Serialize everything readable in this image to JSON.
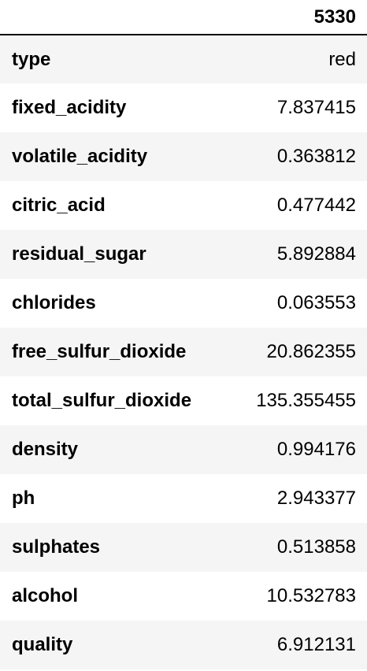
{
  "table": {
    "column_header": "5330",
    "rows": [
      {
        "label": "type",
        "value": "red"
      },
      {
        "label": "fixed_acidity",
        "value": "7.837415"
      },
      {
        "label": "volatile_acidity",
        "value": "0.363812"
      },
      {
        "label": "citric_acid",
        "value": "0.477442"
      },
      {
        "label": "residual_sugar",
        "value": "5.892884"
      },
      {
        "label": "chlorides",
        "value": "0.063553"
      },
      {
        "label": "free_sulfur_dioxide",
        "value": "20.862355"
      },
      {
        "label": "total_sulfur_dioxide",
        "value": "135.355455"
      },
      {
        "label": "density",
        "value": "0.994176"
      },
      {
        "label": "ph",
        "value": "2.943377"
      },
      {
        "label": "sulphates",
        "value": "0.513858"
      },
      {
        "label": "alcohol",
        "value": "10.532783"
      },
      {
        "label": "quality",
        "value": "6.912131"
      }
    ]
  }
}
